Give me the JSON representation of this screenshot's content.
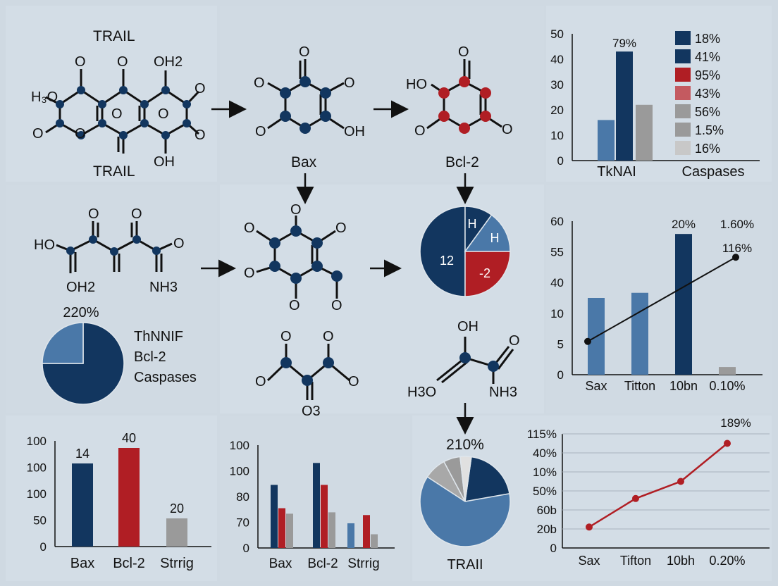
{
  "colors": {
    "navy": "#12365f",
    "blue": "#4a78a8",
    "red": "#b01e24",
    "pink": "#c45a60",
    "gray": "#9a9a9a",
    "lightgray": "#c8c8c8",
    "bond": "#111111"
  },
  "molecules": {
    "m1": {
      "label_top": "TRAIL",
      "label_bottom": "TRAIL",
      "groups": [
        "O",
        "O",
        "OH2",
        "O",
        "H₃O",
        "O",
        "O",
        "O",
        "O",
        "O",
        "OH"
      ]
    },
    "m2": {
      "label": "Bax",
      "groups": [
        "O",
        "O",
        "O",
        "O",
        "OH"
      ]
    },
    "m3": {
      "label": "Bcl-2",
      "groups": [
        "O",
        "HO",
        "O",
        "O"
      ]
    },
    "m4": {
      "groups": [
        "O",
        "O",
        "HO",
        "O",
        "OH2",
        "NH3"
      ]
    },
    "m5": {
      "groups": [
        "O",
        "O",
        "O",
        "O",
        "O",
        "O"
      ]
    },
    "m6": {
      "groups": [
        "O",
        "O",
        "O",
        "O",
        "O3"
      ]
    },
    "m7": {
      "groups": [
        "OH",
        "O",
        "H3O",
        "NH3"
      ]
    },
    "trail_bottom": "TRAII"
  },
  "chart_data": [
    {
      "type": "bar",
      "id": "top_right_bar",
      "yticks": [
        "0",
        "10",
        "20",
        "30",
        "40",
        "50"
      ],
      "ylim": [
        0,
        50
      ],
      "categories": [
        "TkNAI",
        "Caspases"
      ],
      "bars": [
        {
          "value": 16,
          "color": "#4a78a8"
        },
        {
          "value": 43,
          "color": "#12365f",
          "label": "79%"
        },
        {
          "value": 22,
          "color": "#9a9a9a"
        }
      ],
      "legend": [
        {
          "label": "18%",
          "color": "#12365f"
        },
        {
          "label": "41%",
          "color": "#12365f"
        },
        {
          "label": "95%",
          "color": "#b01e24"
        },
        {
          "label": "43%",
          "color": "#c45a60"
        },
        {
          "label": "56%",
          "color": "#9a9a9a"
        },
        {
          "label": "1.5%",
          "color": "#9a9a9a"
        },
        {
          "label": "16%",
          "color": "#c8c8c8"
        }
      ]
    },
    {
      "type": "pie",
      "id": "middle_pie",
      "slices": [
        {
          "label": "12",
          "value": 50,
          "color": "#12365f"
        },
        {
          "label": "H",
          "value": 10,
          "color": "#12365f"
        },
        {
          "label": "H",
          "value": 15,
          "color": "#4a78a8"
        },
        {
          "label": "-2",
          "value": 25,
          "color": "#b01e24"
        }
      ]
    },
    {
      "type": "bar",
      "id": "middle_right_combo",
      "yticks": [
        "0",
        "5",
        "10",
        "40",
        "55",
        "60"
      ],
      "ylim": [
        0,
        60
      ],
      "categories": [
        "Sax",
        "Titton",
        "10bn",
        "0.10%"
      ],
      "bars": [
        {
          "value": 30,
          "color": "#4a78a8"
        },
        {
          "value": 32,
          "color": "#4a78a8"
        },
        {
          "value": 55,
          "color": "#12365f",
          "label": "20%"
        },
        {
          "value": 3,
          "color": "#9a9a9a"
        }
      ],
      "line": {
        "points": [
          {
            "x": 0,
            "y": 13
          },
          {
            "x": 3,
            "y": 47
          }
        ],
        "label": "116%"
      },
      "top_label": "1.60%"
    },
    {
      "type": "pie",
      "id": "left_pie",
      "title": "220%",
      "slices": [
        {
          "value": 75,
          "color": "#12365f"
        },
        {
          "value": 25,
          "color": "#4a78a8"
        }
      ],
      "legend": [
        "ThNNIF",
        "Bcl-2",
        "Caspases"
      ]
    },
    {
      "type": "bar",
      "id": "bottom_left_bar",
      "yticks": [
        "0",
        "50",
        "100",
        "100",
        "100"
      ],
      "ylim": [
        0,
        150
      ],
      "categories": [
        "Bax",
        "Bcl-2",
        "Strrig"
      ],
      "bars": [
        {
          "value": 118,
          "color": "#12365f",
          "label": "14"
        },
        {
          "value": 140,
          "color": "#b01e24",
          "label": "40"
        },
        {
          "value": 40,
          "color": "#9a9a9a",
          "label": "20"
        }
      ]
    },
    {
      "type": "bar",
      "id": "bottom_mid_grouped",
      "yticks": [
        "0",
        "70",
        "80",
        "100",
        "100"
      ],
      "ylim": [
        0,
        150
      ],
      "categories": [
        "Bax",
        "Bcl-2",
        "Strrig"
      ],
      "series": [
        {
          "name": "",
          "color": "#12365f",
          "values": [
            92,
            124,
            0
          ]
        },
        {
          "name": "",
          "color": "#b01e24",
          "values": [
            58,
            92,
            48
          ]
        },
        {
          "name": "",
          "color": "#9a9a9a",
          "values": [
            50,
            52,
            20
          ]
        }
      ],
      "extra_blue": [
        36
      ]
    },
    {
      "type": "pie",
      "id": "bottom_pie",
      "title": "210%",
      "label": "TRAII",
      "slices": [
        {
          "value": 20,
          "color": "#12365f"
        },
        {
          "value": 62,
          "color": "#4a78a8"
        },
        {
          "value": 8,
          "color": "#a8a8a8"
        },
        {
          "value": 6,
          "color": "#9a9a9a"
        },
        {
          "value": 4,
          "color": "#e0e0e0"
        }
      ]
    },
    {
      "type": "line",
      "id": "bottom_right_line",
      "yticks": [
        "0",
        "20b",
        "60b",
        "50%",
        "10%",
        "40%",
        "115%"
      ],
      "categories": [
        "Sax",
        "Tifton",
        "10bh",
        "0.20%"
      ],
      "points": [
        {
          "x": 0,
          "y": 1.1
        },
        {
          "x": 1,
          "y": 2.6
        },
        {
          "x": 2,
          "y": 3.5
        },
        {
          "x": 3,
          "y": 5.5
        }
      ],
      "ylim": [
        0,
        6
      ],
      "top_label": "189%",
      "color": "#b01e24"
    }
  ]
}
